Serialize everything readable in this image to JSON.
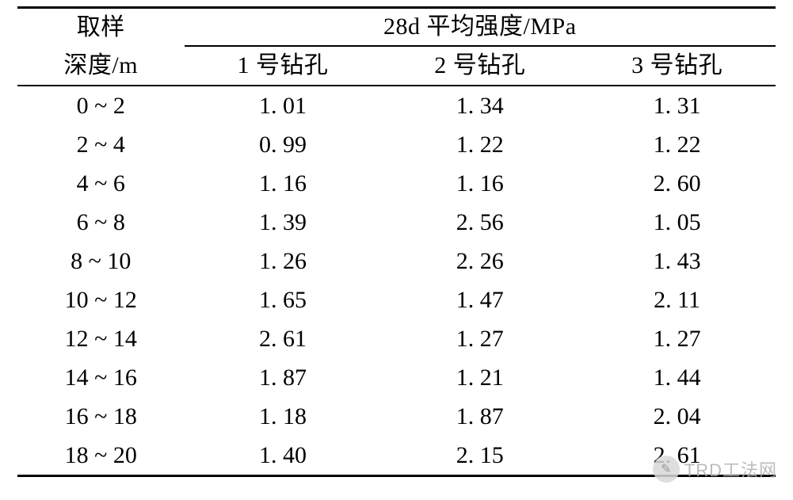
{
  "table": {
    "header": {
      "depth_line1": "取样",
      "depth_line2": "深度/m",
      "strength_title": "28d 平均强度/MPa",
      "col1": "1 号钻孔",
      "col2": "2 号钻孔",
      "col3": "3 号钻孔"
    },
    "rows": [
      {
        "depth": "0 ~ 2",
        "c1": "1. 01",
        "c2": "1. 34",
        "c3": "1. 31"
      },
      {
        "depth": "2 ~ 4",
        "c1": "0. 99",
        "c2": "1. 22",
        "c3": "1. 22"
      },
      {
        "depth": "4 ~ 6",
        "c1": "1. 16",
        "c2": "1. 16",
        "c3": "2. 60"
      },
      {
        "depth": "6 ~ 8",
        "c1": "1. 39",
        "c2": "2. 56",
        "c3": "1. 05"
      },
      {
        "depth": "8 ~ 10",
        "c1": "1. 26",
        "c2": "2. 26",
        "c3": "1. 43"
      },
      {
        "depth": "10 ~ 12",
        "c1": "1. 65",
        "c2": "1. 47",
        "c3": "2. 11"
      },
      {
        "depth": "12 ~ 14",
        "c1": "2. 61",
        "c2": "1. 27",
        "c3": "1. 27"
      },
      {
        "depth": "14 ~ 16",
        "c1": "1. 87",
        "c2": "1. 21",
        "c3": "1. 44"
      },
      {
        "depth": "16 ~ 18",
        "c1": "1. 18",
        "c2": "1. 87",
        "c3": "2. 04"
      },
      {
        "depth": "18 ~ 20",
        "c1": "1. 40",
        "c2": "2. 15",
        "c3": "2. 61"
      }
    ]
  },
  "watermark": {
    "logo_glyph": "✎",
    "text": "TRD工法网"
  },
  "style": {
    "rule_color": "#000000",
    "font_size_pt": 22,
    "background": "#ffffff",
    "watermark_text_color": "#b0b0b0",
    "watermark_logo_bg": "#d9d9d9"
  }
}
